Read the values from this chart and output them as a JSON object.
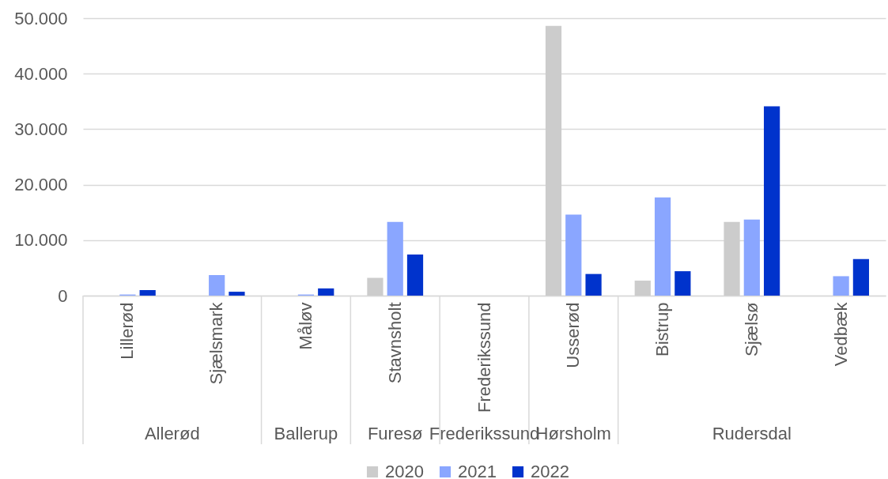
{
  "chart_data": {
    "type": "bar",
    "categories": [
      "Lillerød",
      "Sjælsmark",
      "Måløv",
      "Stavnsholt",
      "Frederikssund",
      "Usserød",
      "Bistrup",
      "Sjælsø",
      "Vedbæk"
    ],
    "series": [
      {
        "name": "2020",
        "color": "#cccccc",
        "values": [
          null,
          null,
          null,
          3200,
          null,
          48600,
          2700,
          13300,
          null
        ]
      },
      {
        "name": "2021",
        "color": "#8aa6ff",
        "values": [
          200,
          3700,
          200,
          13300,
          null,
          14600,
          17700,
          13700,
          3500
        ]
      },
      {
        "name": "2022",
        "color": "#0033cc",
        "values": [
          1000,
          700,
          1300,
          7400,
          null,
          3900,
          4400,
          34100,
          6600
        ]
      }
    ],
    "ylim": [
      0,
      50000
    ],
    "yticks": [
      0,
      {
        "value": 10000,
        "label": "10.000"
      },
      {
        "value": 20000,
        "label": "20.000"
      },
      {
        "value": 30000,
        "label": "30.000"
      },
      {
        "value": 40000,
        "label": "40.000"
      },
      {
        "value": 50000,
        "label": "50.000"
      }
    ],
    "grid": "y",
    "legend": "bottom",
    "annotations": [
      "Allerød",
      "Ballerup",
      "Furesø",
      "Frederikssund",
      "Hørsholm",
      "Rudersdal"
    ]
  }
}
